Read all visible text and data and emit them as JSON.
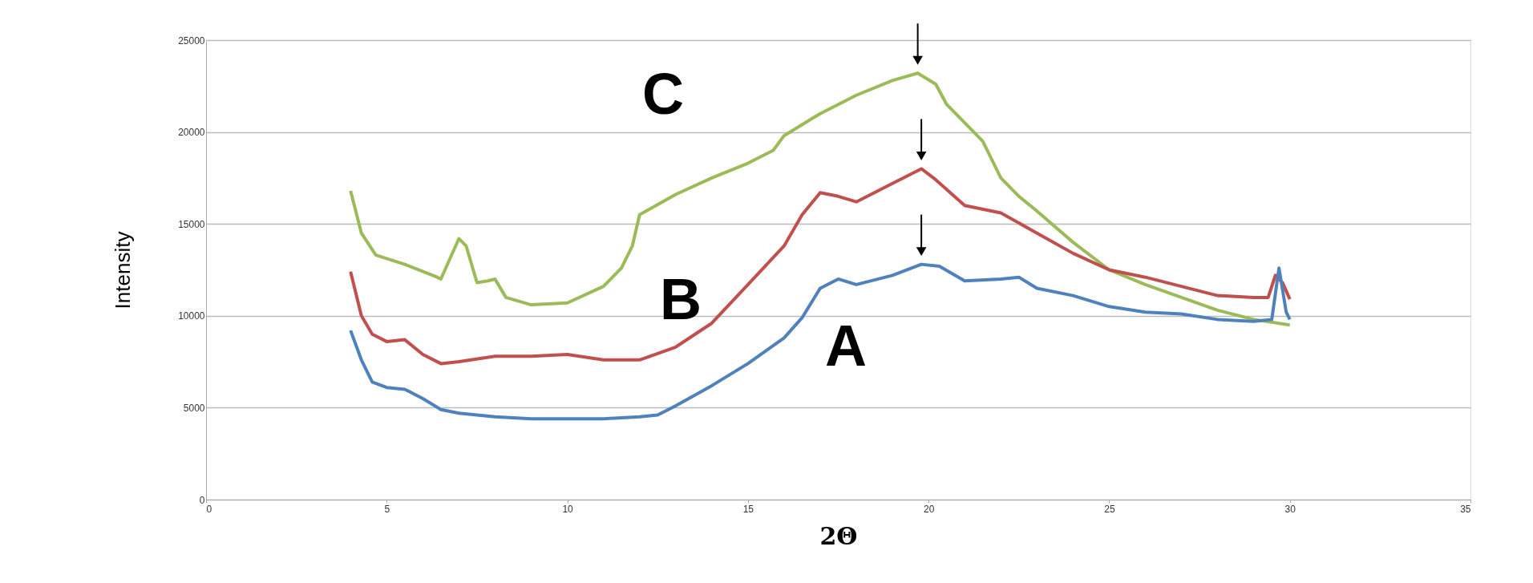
{
  "chart_data": {
    "type": "line",
    "xlabel": "2Θ",
    "ylabel": "Intensity",
    "xlim": [
      0,
      35
    ],
    "xticks": [
      0,
      5,
      10,
      15,
      20,
      25,
      30,
      35
    ],
    "ylim": [
      0,
      25000
    ],
    "yticks": [
      0,
      5000,
      10000,
      15000,
      20000,
      25000
    ],
    "grid": "y",
    "marker": "none",
    "line_style": "solid",
    "series": [
      {
        "name": "C",
        "color": "#9bbb59",
        "x": [
          4.0,
          4.3,
          4.7,
          5.5,
          6.4,
          6.5,
          7.0,
          7.2,
          7.5,
          7.8,
          8.0,
          8.3,
          9.0,
          10.0,
          11.0,
          11.5,
          11.8,
          12.0,
          13.0,
          14.0,
          15.0,
          15.7,
          16.0,
          17.0,
          18.0,
          19.0,
          19.7,
          20.2,
          20.5,
          21.0,
          21.5,
          22.0,
          22.5,
          23.0,
          24.0,
          25.0,
          26.0,
          27.0,
          28.0,
          29.0,
          30.0
        ],
        "values": [
          16800,
          14500,
          13300,
          12800,
          12100,
          12000,
          14200,
          13800,
          11800,
          11900,
          12000,
          11000,
          10600,
          10700,
          11600,
          12600,
          13800,
          15500,
          16600,
          17500,
          18300,
          19000,
          19800,
          21000,
          22000,
          22800,
          23200,
          22600,
          21500,
          20500,
          19500,
          17500,
          16500,
          15700,
          14000,
          12500,
          11700,
          11000,
          10300,
          9800,
          9500
        ]
      },
      {
        "name": "B",
        "color": "#c0504d",
        "x": [
          4.0,
          4.3,
          4.6,
          5.0,
          5.5,
          6.0,
          6.5,
          7.0,
          8.0,
          9.0,
          10.0,
          11.0,
          12.0,
          13.0,
          14.0,
          15.0,
          16.0,
          16.5,
          17.0,
          17.5,
          18.0,
          19.0,
          19.8,
          20.2,
          21.0,
          22.0,
          23.0,
          24.0,
          25.0,
          26.0,
          27.0,
          28.0,
          29.0,
          29.4,
          29.6,
          29.8,
          30.0
        ],
        "values": [
          12400,
          10000,
          9000,
          8600,
          8700,
          7900,
          7400,
          7500,
          7800,
          7800,
          7900,
          7600,
          7600,
          8300,
          9600,
          11700,
          13800,
          15500,
          16700,
          16500,
          16200,
          17200,
          18000,
          17400,
          16000,
          15600,
          14500,
          13400,
          12500,
          12100,
          11600,
          11100,
          11000,
          11000,
          12200,
          11800,
          10900
        ]
      },
      {
        "name": "A",
        "color": "#4f81bd",
        "x": [
          4.0,
          4.3,
          4.6,
          5.0,
          5.5,
          6.0,
          6.5,
          7.0,
          8.0,
          9.0,
          10.0,
          11.0,
          12.0,
          12.5,
          13.0,
          14.0,
          15.0,
          16.0,
          16.5,
          17.0,
          17.5,
          18.0,
          19.0,
          19.8,
          20.3,
          21.0,
          22.0,
          22.5,
          23.0,
          24.0,
          25.0,
          26.0,
          27.0,
          28.0,
          29.0,
          29.5,
          29.7,
          29.9,
          30.0
        ],
        "values": [
          9200,
          7600,
          6400,
          6100,
          6000,
          5500,
          4900,
          4700,
          4500,
          4400,
          4400,
          4400,
          4500,
          4600,
          5100,
          6200,
          7400,
          8800,
          9900,
          11500,
          12000,
          11700,
          12200,
          12800,
          12700,
          11900,
          12000,
          12100,
          11500,
          11100,
          10500,
          10200,
          10100,
          9800,
          9700,
          9800,
          12600,
          10200,
          9800
        ]
      }
    ]
  }
}
